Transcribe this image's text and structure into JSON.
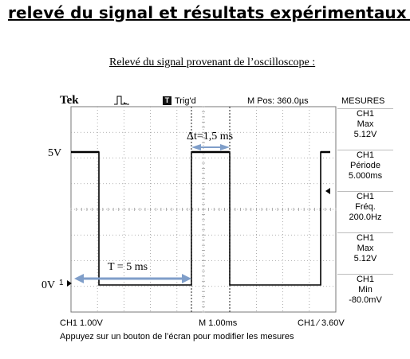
{
  "heading": "relevé du signal et résultats expérimentaux :",
  "subheading": "Relevé du signal provenant de l’oscilloscope :",
  "scope": {
    "brand": "Tek",
    "trigger_status": "Trig'd",
    "trigger_icon": "T",
    "position": "M Pos: 360.0µs",
    "menu_title": "MESURES",
    "measurements": [
      {
        "channel": "CH1",
        "name": "Max",
        "value": "5.12V"
      },
      {
        "channel": "CH1",
        "name": "Période",
        "value": "5.000ms"
      },
      {
        "channel": "CH1",
        "name": "Fréq.",
        "value": "200.0Hz"
      },
      {
        "channel": "CH1",
        "name": "Max",
        "value": "5.12V"
      },
      {
        "channel": "CH1",
        "name": "Min",
        "value": "-80.0mV"
      }
    ],
    "ch1_scale": "CH1  1.00V",
    "time_scale": "M 1.00ms",
    "trigger_info": "CH1 ∕ 3.60V",
    "trigger_icon_label": "trigger-rising-edge-icon",
    "bottom_message": "Appuyez sur un bouton de l’écran pour modifier les mesures",
    "ch1_marker": "1"
  },
  "annotations": {
    "high_level": "5V",
    "low_level": "0V",
    "delta_t": "Δt=1,5 ms",
    "period": "T = 5 ms"
  },
  "colors": {
    "arrow": "#7f9ec9",
    "trace": "#000000",
    "grid": "#999999"
  }
}
